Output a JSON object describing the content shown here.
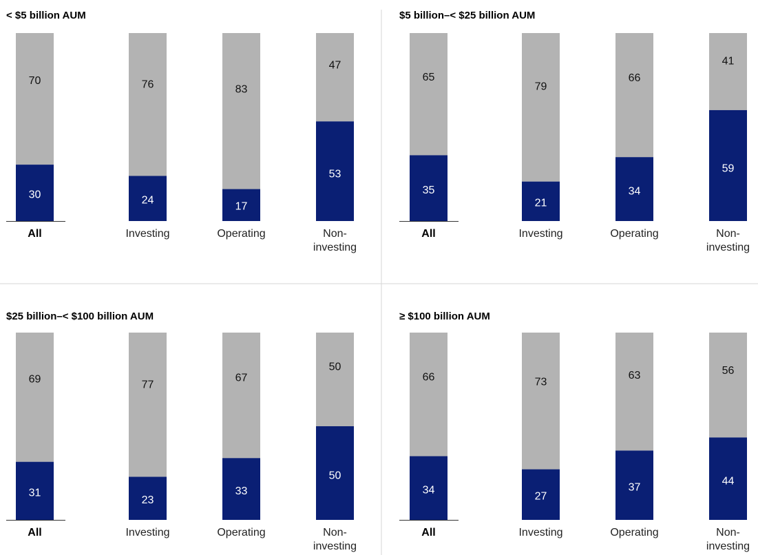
{
  "colors": {
    "segment_a": "#0a1f74",
    "segment_b": "#b3b3b3",
    "divider": "#d6d6d6",
    "axis": "#333333",
    "label_on_a": "#ffffff",
    "label_on_b": "#111111"
  },
  "chart_data": [
    {
      "type": "bar",
      "stacked": true,
      "title": "< $5 billion AUM",
      "categories": [
        [
          "All"
        ],
        [
          "Investing"
        ],
        [
          "Operating"
        ],
        [
          "Non-",
          "investing"
        ]
      ],
      "emphasized_category": 0,
      "ylim": [
        0,
        100
      ],
      "series": [
        {
          "values": [
            30,
            24,
            17,
            53
          ]
        },
        {
          "values": [
            70,
            76,
            83,
            47
          ]
        }
      ]
    },
    {
      "type": "bar",
      "stacked": true,
      "title": "$5 billion–< $25 billion AUM",
      "categories": [
        [
          "All"
        ],
        [
          "Investing"
        ],
        [
          "Operating"
        ],
        [
          "Non-",
          "investing"
        ]
      ],
      "emphasized_category": 0,
      "ylim": [
        0,
        100
      ],
      "series": [
        {
          "values": [
            35,
            21,
            34,
            59
          ]
        },
        {
          "values": [
            65,
            79,
            66,
            41
          ]
        }
      ]
    },
    {
      "type": "bar",
      "stacked": true,
      "title": "$25 billion–< $100 billion AUM",
      "categories": [
        [
          "All"
        ],
        [
          "Investing"
        ],
        [
          "Operating"
        ],
        [
          "Non-",
          "investing"
        ]
      ],
      "emphasized_category": 0,
      "ylim": [
        0,
        100
      ],
      "series": [
        {
          "values": [
            31,
            23,
            33,
            50
          ]
        },
        {
          "values": [
            69,
            77,
            67,
            50
          ]
        }
      ]
    },
    {
      "type": "bar",
      "stacked": true,
      "title": "≥ $100 billion AUM",
      "categories": [
        [
          "All"
        ],
        [
          "Investing"
        ],
        [
          "Operating"
        ],
        [
          "Non-",
          "investing"
        ]
      ],
      "emphasized_category": 0,
      "ylim": [
        0,
        100
      ],
      "series": [
        {
          "values": [
            34,
            27,
            37,
            44
          ]
        },
        {
          "values": [
            66,
            73,
            63,
            56
          ]
        }
      ]
    }
  ]
}
